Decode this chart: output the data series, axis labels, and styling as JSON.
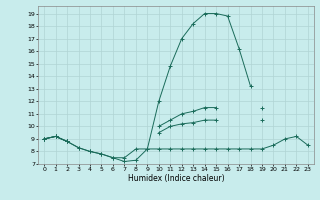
{
  "title": "",
  "xlabel": "Humidex (Indice chaleur)",
  "x_values": [
    0,
    1,
    2,
    3,
    4,
    5,
    6,
    7,
    8,
    9,
    10,
    11,
    12,
    13,
    14,
    15,
    16,
    17,
    18,
    19,
    20,
    21,
    22,
    23
  ],
  "line1": [
    9.0,
    9.2,
    8.8,
    8.3,
    8.0,
    7.8,
    7.5,
    7.5,
    8.2,
    8.2,
    12.0,
    14.8,
    17.0,
    18.2,
    19.0,
    19.0,
    18.8,
    16.2,
    13.2,
    null,
    null,
    null,
    null,
    null
  ],
  "line2": [
    9.0,
    9.2,
    8.8,
    null,
    null,
    null,
    null,
    null,
    null,
    null,
    10.0,
    10.5,
    11.0,
    11.2,
    11.5,
    11.5,
    null,
    null,
    null,
    11.5,
    null,
    null,
    null,
    null
  ],
  "line3": [
    9.0,
    9.2,
    8.8,
    null,
    null,
    null,
    null,
    null,
    null,
    null,
    9.5,
    10.0,
    10.2,
    10.3,
    10.5,
    10.5,
    null,
    null,
    null,
    10.5,
    null,
    null,
    null,
    null
  ],
  "line4": [
    9.0,
    9.2,
    8.8,
    8.3,
    8.0,
    7.8,
    7.5,
    7.2,
    7.3,
    8.2,
    8.2,
    8.2,
    8.2,
    8.2,
    8.2,
    8.2,
    8.2,
    8.2,
    8.2,
    8.2,
    8.5,
    9.0,
    9.2,
    8.5
  ],
  "line_color": "#1a6b5a",
  "bg_color": "#c8ecec",
  "grid_color": "#b0d4d4",
  "xlim": [
    -0.5,
    23.5
  ],
  "ylim": [
    7,
    19.6
  ],
  "yticks": [
    7,
    8,
    9,
    10,
    11,
    12,
    13,
    14,
    15,
    16,
    17,
    18,
    19
  ],
  "xticks": [
    0,
    1,
    2,
    3,
    4,
    5,
    6,
    7,
    8,
    9,
    10,
    11,
    12,
    13,
    14,
    15,
    16,
    17,
    18,
    19,
    20,
    21,
    22,
    23
  ]
}
